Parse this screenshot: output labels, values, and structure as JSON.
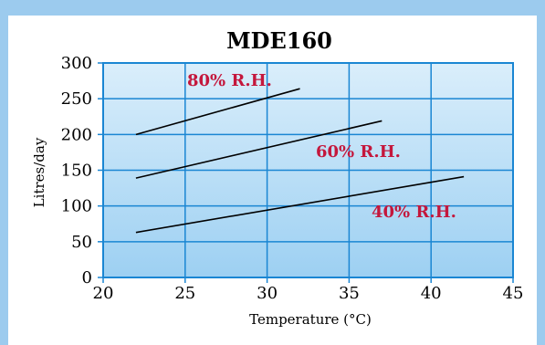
{
  "chart_data": {
    "type": "line",
    "title": "MDE160",
    "xlabel": "Temperature (°C)",
    "ylabel": "Litres/day",
    "xlim": [
      20,
      45
    ],
    "ylim": [
      0,
      300
    ],
    "xticks": [
      "20",
      "25",
      "30",
      "35",
      "40",
      "45"
    ],
    "yticks": [
      "0",
      "50",
      "100",
      "150",
      "200",
      "250",
      "300"
    ],
    "grid": true,
    "series": [
      {
        "name": "80% R.H.",
        "x": [
          22,
          32
        ],
        "y": [
          200,
          264
        ]
      },
      {
        "name": "60% R.H.",
        "x": [
          22,
          37
        ],
        "y": [
          139,
          219
        ]
      },
      {
        "name": "40% R.H.",
        "x": [
          22,
          42
        ],
        "y": [
          63,
          141
        ]
      }
    ]
  },
  "colors": {
    "frame": "#9ccbee",
    "plot_top": "#daeefb",
    "plot_bottom": "#9dd0f2",
    "grid": "#1a86d3",
    "series_line": "#000000",
    "series_label": "#c4173c"
  }
}
